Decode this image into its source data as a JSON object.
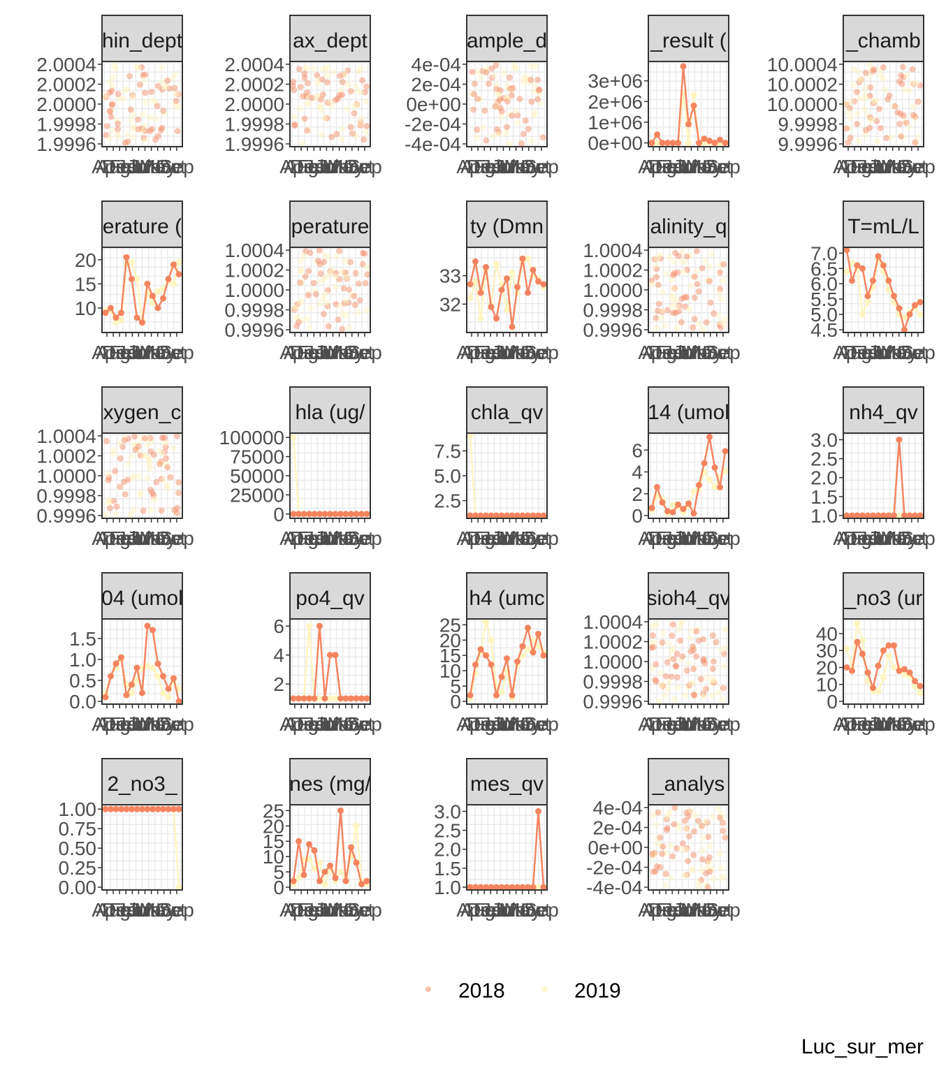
{
  "chart_data": {
    "type": "faceted-scatter-line",
    "caption": "Luc_sur_mer",
    "legend": {
      "placement": "bottom",
      "items": [
        {
          "label": "2018",
          "color": "#f4a582"
        },
        {
          "label": "2019",
          "color": "#fff2b2"
        }
      ]
    },
    "series_colors": {
      "2018": "#f4845f",
      "2019": "#fff5c0"
    },
    "x_tick_labels": [
      "Apr",
      "Aug",
      "Dec",
      "Feb",
      "Jan",
      "Jul",
      "Jun",
      "Mar",
      "May",
      "Nov",
      "Oct",
      "Sep"
    ],
    "facets": [
      {
        "strip": "hin_dept",
        "y_ticks": [
          "1.9996",
          "1.9998",
          "2.0000",
          "2.0002",
          "2.0004"
        ],
        "ylim": [
          1.9996,
          2.0004
        ],
        "kind": "noise",
        "center": 2.0,
        "spread": 0.0004
      },
      {
        "strip": "ax_dept",
        "y_ticks": [
          "1.9996",
          "1.9998",
          "2.0000",
          "2.0002",
          "2.0004"
        ],
        "ylim": [
          1.9996,
          2.0004
        ],
        "kind": "noise",
        "center": 2.0,
        "spread": 0.0004
      },
      {
        "strip": "ample_d",
        "y_ticks": [
          "-4e-04",
          "-2e-04",
          "0e+00",
          "2e-04",
          "4e-04"
        ],
        "ylim": [
          -0.0004,
          0.0004
        ],
        "kind": "noise",
        "center": 0,
        "spread": 0.0004
      },
      {
        "strip": "_result (",
        "y_ticks": [
          "0e+00",
          "1e+06",
          "2e+06",
          "3e+06"
        ],
        "ylim": [
          -50000,
          3800000
        ],
        "kind": "lines",
        "s2018": [
          0,
          400000,
          0,
          0,
          0,
          0,
          3700000,
          900000,
          1800000,
          0,
          200000,
          100000,
          0,
          150000,
          0
        ],
        "s2019": [
          0,
          0,
          0,
          0,
          0,
          0,
          2400000,
          0,
          2300000,
          0,
          0,
          0,
          0,
          0,
          0
        ]
      },
      {
        "strip": "_chamb",
        "y_ticks": [
          "9.9996",
          "9.9998",
          "10.0000",
          "10.0002",
          "10.0004"
        ],
        "ylim": [
          9.9996,
          10.0004
        ],
        "kind": "noise",
        "center": 10.0,
        "spread": 0.0004
      },
      {
        "strip": "erature (",
        "y_ticks": [
          "10",
          "15",
          "20"
        ],
        "ylim": [
          5.5,
          22
        ],
        "kind": "lines",
        "s2018": [
          9,
          10,
          8,
          9,
          20.5,
          16,
          8,
          7,
          15,
          12.5,
          10,
          12,
          16,
          19,
          17
        ],
        "s2019": [
          9.5,
          9.5,
          7,
          7.5,
          19,
          19.5,
          16,
          7.5,
          13,
          11,
          13.5,
          14,
          15.5,
          15,
          19.5
        ]
      },
      {
        "strip": "perature",
        "y_ticks": [
          "0.9996",
          "0.9998",
          "1.0000",
          "1.0002",
          "1.0004"
        ],
        "ylim": [
          0.9996,
          1.0004
        ],
        "kind": "noise",
        "center": 1.0,
        "spread": 0.0004
      },
      {
        "strip": "ty (Dmn",
        "y_ticks": [
          "32",
          "33"
        ],
        "ylim": [
          31.1,
          33.9
        ],
        "kind": "lines",
        "s2018": [
          32.7,
          33.5,
          32.4,
          33.3,
          31.9,
          31.5,
          32.5,
          32.9,
          31.2,
          32.6,
          33.6,
          32.4,
          33.2,
          32.8,
          32.7
        ],
        "s2019": [
          32.2,
          32.8,
          31.5,
          33.2,
          32.0,
          33.4,
          32.7,
          31.8,
          33.1,
          32.4,
          33.5,
          33.6,
          33.0,
          32.9,
          32.6
        ]
      },
      {
        "strip": "alinity_q",
        "y_ticks": [
          "0.9996",
          "0.9998",
          "1.0000",
          "1.0002",
          "1.0004"
        ],
        "ylim": [
          0.9996,
          1.0004
        ],
        "kind": "noise",
        "center": 1.0,
        "spread": 0.0004
      },
      {
        "strip": "T=mL/L",
        "y_ticks": [
          "4.5",
          "5.0",
          "5.5",
          "6.0",
          "6.5",
          "7.0"
        ],
        "ylim": [
          4.5,
          7.1
        ],
        "kind": "lines",
        "s2018": [
          7.1,
          6.1,
          6.6,
          6.5,
          5.6,
          6.1,
          6.9,
          6.6,
          6.1,
          5.6,
          5.2,
          4.5,
          5.0,
          5.3,
          5.4
        ],
        "s2019": [
          6.4,
          6.7,
          6.5,
          5.0,
          5.4,
          5.9,
          6.8,
          6.4,
          5.8,
          5.4,
          5.0,
          4.9,
          5.1,
          5.2,
          5.0
        ]
      },
      {
        "strip": "xygen_c",
        "y_ticks": [
          "0.9996",
          "0.9998",
          "1.0000",
          "1.0002",
          "1.0004"
        ],
        "ylim": [
          0.9996,
          1.0004
        ],
        "kind": "noise",
        "center": 1.0,
        "spread": 0.0004
      },
      {
        "strip": "hla (ug/",
        "y_ticks": [
          "0",
          "25000",
          "50000",
          "75000",
          "100000"
        ],
        "ylim": [
          -2000,
          102000
        ],
        "kind": "lines",
        "s2018": [
          0,
          0,
          0,
          0,
          0,
          0,
          0,
          0,
          0,
          0,
          0,
          0,
          0,
          0,
          0
        ],
        "s2019": [
          100000,
          0,
          0,
          0,
          0,
          0,
          0,
          0,
          0,
          0,
          0,
          0,
          0,
          0,
          0
        ]
      },
      {
        "strip": "chla_qv",
        "y_ticks": [
          "2.5",
          "5.0",
          "7.5"
        ],
        "ylim": [
          1,
          9
        ],
        "kind": "lines",
        "s2018": [
          1,
          1,
          1,
          1,
          1,
          1,
          1,
          1,
          1,
          1,
          1,
          1,
          1,
          1,
          1
        ],
        "s2019": [
          9,
          1,
          1,
          1,
          1,
          1,
          1,
          1,
          1,
          1,
          1,
          1,
          1,
          1,
          1
        ]
      },
      {
        "strip": "14 (umol",
        "y_ticks": [
          "0",
          "2",
          "4",
          "6"
        ],
        "ylim": [
          0,
          7.3
        ],
        "kind": "lines",
        "s2018": [
          0.7,
          2.6,
          1.2,
          0.4,
          0.3,
          1.0,
          0.6,
          1.1,
          0.2,
          2.8,
          4.8,
          7.2,
          4.4,
          2.6,
          5.9
        ],
        "s2019": [
          0.5,
          1.8,
          1.5,
          0.2,
          1.0,
          0.8,
          0.3,
          0.9,
          2.2,
          2.4,
          4.0,
          3.3,
          2.6,
          3.6,
          4.1
        ]
      },
      {
        "strip": "nh4_qv",
        "y_ticks": [
          "1.0",
          "1.5",
          "2.0",
          "2.5",
          "3.0"
        ],
        "ylim": [
          1,
          3.1
        ],
        "kind": "lines",
        "s2018": [
          1,
          1,
          1,
          1,
          1,
          1,
          1,
          1,
          1,
          1,
          3.0,
          1,
          1,
          1,
          1
        ],
        "s2019": [
          1,
          1,
          1,
          1,
          1,
          1,
          1,
          1,
          1,
          1,
          1,
          1,
          1,
          1,
          1
        ]
      },
      {
        "strip": "04 (umol",
        "y_ticks": [
          "0.0",
          "0.5",
          "1.0",
          "1.5"
        ],
        "ylim": [
          0,
          1.9
        ],
        "kind": "lines",
        "s2018": [
          0.1,
          0.6,
          0.9,
          1.05,
          0.15,
          0.4,
          0.8,
          0.2,
          1.8,
          1.7,
          0.9,
          0.6,
          0.3,
          0.55,
          0.0
        ],
        "s2019": [
          0.2,
          0.6,
          0.8,
          1.0,
          0.4,
          0.2,
          0.5,
          0.8,
          0.85,
          0.8,
          0.6,
          0.2,
          0.1,
          0.5,
          0.3
        ]
      },
      {
        "strip": "po4_qv",
        "y_ticks": [
          "2",
          "4",
          "6"
        ],
        "ylim": [
          0.8,
          6.3
        ],
        "kind": "lines",
        "s2018": [
          1,
          1,
          1,
          1,
          1,
          6,
          1,
          4,
          4,
          1,
          1,
          1,
          1,
          1,
          1
        ],
        "s2019": [
          1,
          1,
          1,
          6,
          1,
          1,
          1,
          1,
          1,
          1,
          1,
          1,
          1,
          1,
          1
        ]
      },
      {
        "strip": "h4 (umc",
        "y_ticks": [
          "0",
          "5",
          "10",
          "15",
          "20",
          "25"
        ],
        "ylim": [
          0,
          26
        ],
        "kind": "lines",
        "s2018": [
          2,
          12,
          17,
          15,
          12,
          2,
          8,
          14,
          2,
          13,
          18,
          24,
          16,
          22,
          15
        ],
        "s2019": [
          1,
          9,
          16,
          26,
          20,
          5,
          3,
          10,
          1,
          12,
          15,
          17,
          20,
          18,
          16
        ]
      },
      {
        "strip": "sioh4_qv",
        "y_ticks": [
          "0.9996",
          "0.9998",
          "1.0000",
          "1.0002",
          "1.0004"
        ],
        "ylim": [
          0.9996,
          1.0004
        ],
        "kind": "noise",
        "center": 1.0,
        "spread": 0.0004
      },
      {
        "strip": "_no3 (ur",
        "y_ticks": [
          "0",
          "10",
          "20",
          "30",
          "40"
        ],
        "ylim": [
          0,
          47
        ],
        "kind": "lines",
        "s2018": [
          20,
          18,
          35,
          28,
          17,
          8,
          21,
          30,
          33,
          33,
          18,
          19,
          17,
          12,
          9
        ],
        "s2019": [
          31,
          20,
          46,
          36,
          12,
          6,
          6,
          14,
          27,
          20,
          20,
          16,
          15,
          9,
          5
        ]
      },
      {
        "strip": "2_no3_",
        "y_ticks": [
          "0.00",
          "0.25",
          "0.50",
          "0.75",
          "1.00"
        ],
        "ylim": [
          0,
          1.02
        ],
        "kind": "lines",
        "s2018": [
          1,
          1,
          1,
          1,
          1,
          1,
          1,
          1,
          1,
          1,
          1,
          1,
          1,
          1,
          1
        ],
        "s2019": [
          1,
          1,
          1,
          1,
          1,
          1,
          1,
          1,
          1,
          1,
          1,
          1,
          1,
          1,
          0
        ]
      },
      {
        "strip": "nes (mg/",
        "y_ticks": [
          "0",
          "5",
          "10",
          "15",
          "20",
          "25"
        ],
        "ylim": [
          0,
          26
        ],
        "kind": "lines",
        "s2018": [
          2,
          15,
          4,
          14,
          12,
          2,
          5,
          7,
          3,
          25,
          2,
          13,
          8,
          1,
          2
        ],
        "s2019": [
          1,
          3,
          9,
          9,
          6,
          8,
          1,
          6,
          2,
          5,
          3,
          10,
          20,
          2,
          1
        ]
      },
      {
        "strip": "mes_qv",
        "y_ticks": [
          "1.0",
          "1.5",
          "2.0",
          "2.5",
          "3.0"
        ],
        "ylim": [
          1,
          3.1
        ],
        "kind": "lines",
        "s2018": [
          1,
          1,
          1,
          1,
          1,
          1,
          1,
          1,
          1,
          1,
          1,
          1,
          1,
          3.0,
          1
        ],
        "s2019": [
          1,
          1,
          1,
          1,
          1,
          1,
          1,
          1,
          1,
          1,
          1,
          1,
          1,
          1,
          1
        ]
      },
      {
        "strip": "_analys",
        "y_ticks": [
          "-4e-04",
          "-2e-04",
          "0e+00",
          "2e-04",
          "4e-04"
        ],
        "ylim": [
          -0.0004,
          0.0004
        ],
        "kind": "noise",
        "center": 0,
        "spread": 0.0004
      }
    ]
  }
}
